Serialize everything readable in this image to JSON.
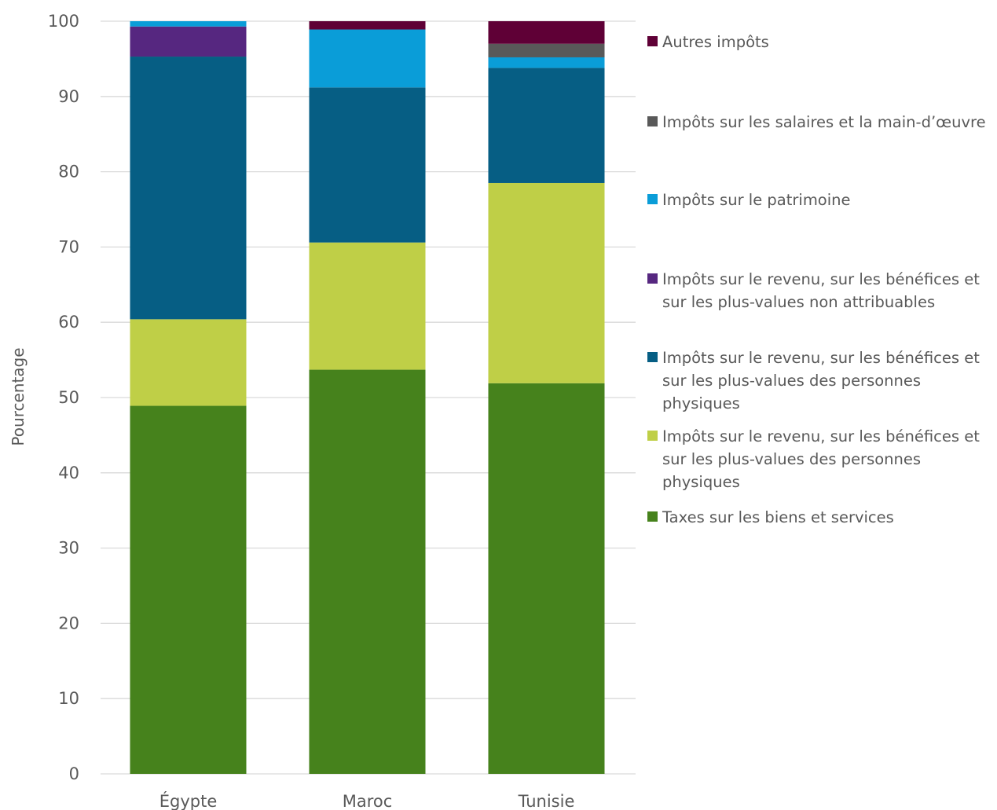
{
  "chart_data": {
    "type": "bar",
    "stacked": true,
    "title": "",
    "xlabel": "",
    "ylabel": "Pourcentage",
    "ylim": [
      0,
      100
    ],
    "yticks": [
      0,
      10,
      20,
      30,
      40,
      50,
      60,
      70,
      80,
      90,
      100
    ],
    "grid": true,
    "legend_position": "right",
    "categories": [
      "Égypte",
      "Maroc",
      "Tunisie"
    ],
    "series": [
      {
        "name": "Taxes sur les biens et services",
        "color": "#46821c",
        "values": [
          48.9,
          53.7,
          51.9
        ]
      },
      {
        "name": "Impôts sur le revenu, sur les bénéfices et sur les plus-values des personnes physiques",
        "color": "#bfcf47",
        "values": [
          11.5,
          16.9,
          26.6
        ]
      },
      {
        "name": "Impôts sur le revenu, sur les bénéfices et sur les plus-values des personnes physiques",
        "color": "#065e84",
        "values": [
          34.9,
          20.6,
          15.3
        ]
      },
      {
        "name": "Impôts sur le revenu, sur les bénéfices et sur les plus-values non attribuables",
        "color": "#562780",
        "values": [
          4.0,
          0.0,
          0.0
        ]
      },
      {
        "name": "Impôts sur le patrimoine",
        "color": "#0a9dd8",
        "values": [
          0.7,
          7.7,
          1.4
        ]
      },
      {
        "name": "Impôts sur les salaires et la main-d’œuvre",
        "color": "#595959",
        "values": [
          0.0,
          0.0,
          1.8
        ]
      },
      {
        "name": "Autres impôts",
        "color": "#5f0036",
        "values": [
          0.0,
          1.1,
          3.0
        ]
      }
    ]
  },
  "legend": [
    {
      "label": "Autres impôts",
      "color": "#5f0036"
    },
    {
      "label": "Impôts sur les salaires et la main-d’œuvre",
      "color": "#595959"
    },
    {
      "label": "Impôts sur le patrimoine",
      "color": "#0a9dd8"
    },
    {
      "label": "Impôts sur le revenu, sur les bénéfices et sur les plus-values non attribuables",
      "color": "#562780"
    },
    {
      "label": "Impôts sur le revenu, sur les bénéfices et sur les plus-values des personnes physiques",
      "color": "#065e84"
    },
    {
      "label": "Impôts sur le revenu, sur les bénéfices et sur les plus-values des personnes physiques",
      "color": "#bfcf47"
    },
    {
      "label": "Taxes sur les biens et services",
      "color": "#46821c"
    }
  ]
}
